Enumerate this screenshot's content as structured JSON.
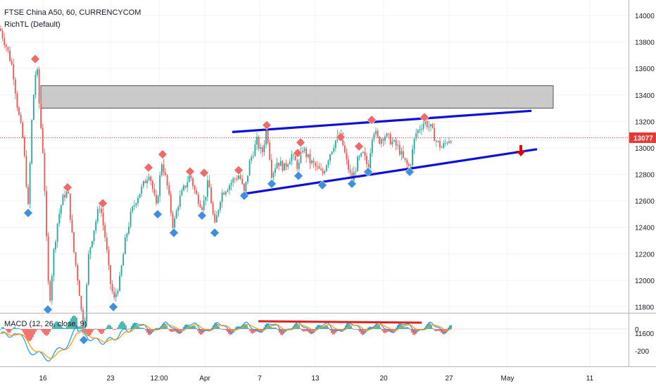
{
  "header": {
    "symbol_line": "FTSE China A50, 60, CURRENCYCOM",
    "indicator_line": "RichTL (Default)"
  },
  "macd": {
    "label": "MACD (12, 26, close, 9)",
    "ticks": [
      "0",
      "-200"
    ]
  },
  "last_price": "13077",
  "colors": {
    "up": "#26a69a",
    "down": "#ef5350",
    "trendline": "#0d10d6",
    "pivot_high": "#f06a6a",
    "pivot_low": "#3d8fe0",
    "zone": "#bdbdbd",
    "macd_line": "#2196f3",
    "signal_line": "#ff9800",
    "divergence": "#e02020",
    "arrow": "#e00000"
  },
  "chart_data": {
    "type": "candlestick",
    "y_axis_ticks": [
      11600,
      11800,
      12000,
      12200,
      12400,
      12600,
      12800,
      13000,
      13200,
      13400,
      13600,
      13800,
      14000
    ],
    "x_axis_ticks": [
      "16",
      "23",
      "12:00",
      "Apr",
      "7",
      "13",
      "20",
      "27",
      "May",
      "11"
    ],
    "last_price": 13077,
    "price_path": [
      [
        0,
        13900
      ],
      [
        10,
        13750
      ],
      [
        18,
        13600
      ],
      [
        25,
        13300
      ],
      [
        33,
        13050
      ],
      [
        40,
        12550
      ],
      [
        46,
        13300
      ],
      [
        52,
        13650
      ],
      [
        56,
        13300
      ],
      [
        62,
        12900
      ],
      [
        66,
        12300
      ],
      [
        70,
        11800
      ],
      [
        76,
        12200
      ],
      [
        82,
        12450
      ],
      [
        88,
        12600
      ],
      [
        96,
        12700
      ],
      [
        104,
        12250
      ],
      [
        112,
        11950
      ],
      [
        119,
        11580
      ],
      [
        126,
        12200
      ],
      [
        134,
        12400
      ],
      [
        142,
        12580
      ],
      [
        150,
        12300
      ],
      [
        156,
        12000
      ],
      [
        162,
        11850
      ],
      [
        170,
        12000
      ],
      [
        178,
        12300
      ],
      [
        186,
        12500
      ],
      [
        194,
        12620
      ],
      [
        202,
        12700
      ],
      [
        212,
        12820
      ],
      [
        222,
        12550
      ],
      [
        230,
        12900
      ],
      [
        238,
        12700
      ],
      [
        246,
        12400
      ],
      [
        254,
        12600
      ],
      [
        262,
        12700
      ],
      [
        270,
        12800
      ],
      [
        278,
        12650
      ],
      [
        288,
        12550
      ],
      [
        296,
        12750
      ],
      [
        305,
        12400
      ],
      [
        314,
        12650
      ],
      [
        322,
        12700
      ],
      [
        330,
        12750
      ],
      [
        340,
        12800
      ],
      [
        347,
        12650
      ],
      [
        355,
        12900
      ],
      [
        365,
        13050
      ],
      [
        372,
        12950
      ],
      [
        379,
        13150
      ],
      [
        386,
        12800
      ],
      [
        394,
        12900
      ],
      [
        404,
        12850
      ],
      [
        414,
        12950
      ],
      [
        424,
        12850
      ],
      [
        430,
        13000
      ],
      [
        440,
        12900
      ],
      [
        450,
        12850
      ],
      [
        458,
        12800
      ],
      [
        468,
        12950
      ],
      [
        476,
        13050
      ],
      [
        484,
        13100
      ],
      [
        492,
        12900
      ],
      [
        500,
        12750
      ],
      [
        508,
        12900
      ],
      [
        516,
        12950
      ],
      [
        523,
        12850
      ],
      [
        530,
        13150
      ],
      [
        538,
        13050
      ],
      [
        546,
        13100
      ],
      [
        556,
        13050
      ],
      [
        566,
        13000
      ],
      [
        574,
        12900
      ],
      [
        582,
        12850
      ],
      [
        590,
        13100
      ],
      [
        596,
        13150
      ],
      [
        603,
        13200
      ],
      [
        612,
        13150
      ],
      [
        620,
        13050
      ],
      [
        628,
        13000
      ],
      [
        636,
        13060
      ],
      [
        641,
        13077
      ]
    ],
    "zone": {
      "from": 13300,
      "to": 13470
    },
    "trendlines": [
      {
        "name": "resistance",
        "points": [
          [
            330,
            13120
          ],
          [
            755,
            13280
          ]
        ]
      },
      {
        "name": "support",
        "points": [
          [
            343,
            12650
          ],
          [
            763,
            12990
          ]
        ]
      }
    ],
    "pivot_highs": [
      {
        "x": 50,
        "value": 13650
      },
      {
        "x": 96,
        "value": 12680
      },
      {
        "x": 146,
        "value": 12560
      },
      {
        "x": 211,
        "value": 12830
      },
      {
        "x": 231,
        "value": 12930
      },
      {
        "x": 270,
        "value": 12800
      },
      {
        "x": 290,
        "value": 12790
      },
      {
        "x": 339,
        "value": 12810
      },
      {
        "x": 379,
        "value": 13150
      },
      {
        "x": 423,
        "value": 12940
      },
      {
        "x": 427,
        "value": 13020
      },
      {
        "x": 484,
        "value": 13060
      },
      {
        "x": 510,
        "value": 12990
      },
      {
        "x": 528,
        "value": 13190
      },
      {
        "x": 603,
        "value": 13210
      }
    ],
    "pivot_lows": [
      {
        "x": 40,
        "value": 12530
      },
      {
        "x": 68,
        "value": 11800
      },
      {
        "x": 119,
        "value": 11570
      },
      {
        "x": 161,
        "value": 11820
      },
      {
        "x": 224,
        "value": 12520
      },
      {
        "x": 247,
        "value": 12380
      },
      {
        "x": 287,
        "value": 12510
      },
      {
        "x": 305,
        "value": 12380
      },
      {
        "x": 347,
        "value": 12660
      },
      {
        "x": 386,
        "value": 12750
      },
      {
        "x": 424,
        "value": 12810
      },
      {
        "x": 458,
        "value": 12740
      },
      {
        "x": 500,
        "value": 12750
      },
      {
        "x": 523,
        "value": 12840
      },
      {
        "x": 582,
        "value": 12840
      }
    ]
  }
}
